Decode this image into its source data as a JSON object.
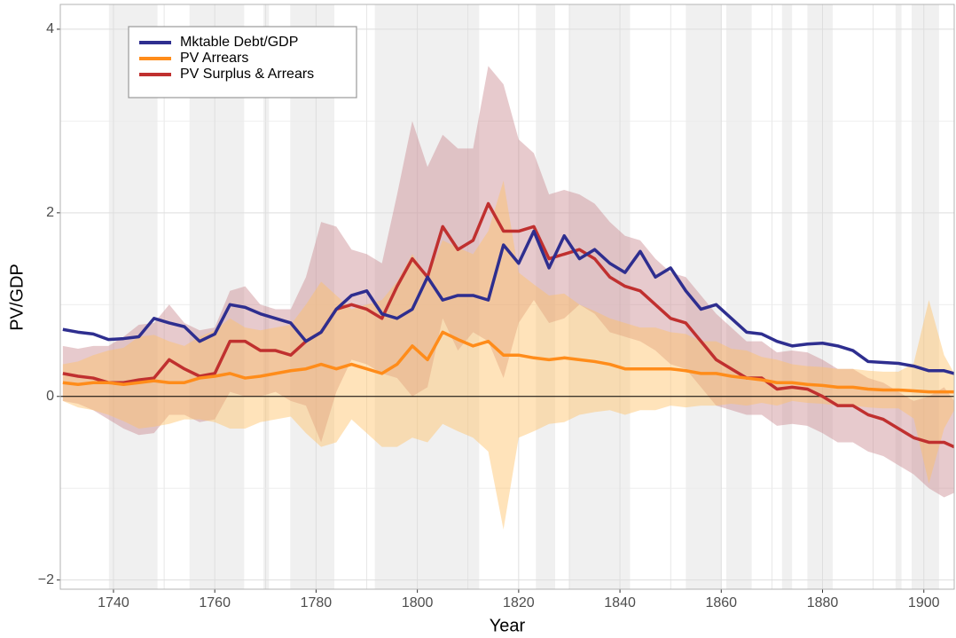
{
  "chart_data": {
    "type": "line",
    "xlabel": "Year",
    "ylabel": "PV/GDP",
    "xlim": [
      1729.5,
      1906
    ],
    "ylim": [
      -2.1,
      4.27
    ],
    "xticks": [
      1740,
      1760,
      1780,
      1800,
      1820,
      1840,
      1860,
      1880,
      1900
    ],
    "yticks": [
      {
        "value": -2,
        "label": "−2"
      },
      0,
      2,
      4
    ],
    "grid": true,
    "legend": "top-left",
    "reference_line": 0,
    "shaded_periods": [
      [
        1739.1,
        1748.7
      ],
      [
        1755,
        1765.8
      ],
      [
        1769.6,
        1770.7
      ],
      [
        1774.9,
        1783.6
      ],
      [
        1791.6,
        1812.2
      ],
      [
        1823.4,
        1827.2
      ],
      [
        1830,
        1842
      ],
      [
        1853,
        1860
      ],
      [
        1861,
        1866
      ],
      [
        1872,
        1874
      ],
      [
        1877,
        1882
      ],
      [
        1894.4,
        1895.6
      ],
      [
        1897.6,
        1903
      ]
    ],
    "x": [
      1730,
      1733,
      1736,
      1739,
      1742,
      1745,
      1748,
      1751,
      1754,
      1757,
      1760,
      1763,
      1766,
      1769,
      1772,
      1775,
      1778,
      1781,
      1784,
      1787,
      1790,
      1793,
      1796,
      1799,
      1802,
      1805,
      1808,
      1811,
      1814,
      1817,
      1820,
      1823,
      1826,
      1829,
      1832,
      1835,
      1838,
      1841,
      1844,
      1847,
      1850,
      1853,
      1856,
      1859,
      1862,
      1865,
      1868,
      1871,
      1874,
      1877,
      1880,
      1883,
      1886,
      1889,
      1892,
      1895,
      1898,
      1901,
      1904,
      1906
    ],
    "series": [
      {
        "name": "Mktable Debt/GDP",
        "color": "#2e2e8f",
        "values": [
          0.73,
          0.7,
          0.68,
          0.62,
          0.63,
          0.65,
          0.85,
          0.8,
          0.76,
          0.6,
          0.68,
          1.0,
          0.97,
          0.9,
          0.85,
          0.8,
          0.6,
          0.7,
          0.95,
          1.1,
          1.15,
          0.9,
          0.85,
          0.95,
          1.3,
          1.05,
          1.1,
          1.1,
          1.05,
          1.65,
          1.45,
          1.8,
          1.4,
          1.75,
          1.5,
          1.6,
          1.45,
          1.35,
          1.58,
          1.3,
          1.4,
          1.15,
          0.95,
          1.0,
          0.85,
          0.7,
          0.68,
          0.6,
          0.55,
          0.57,
          0.58,
          0.55,
          0.5,
          0.38,
          0.37,
          0.36,
          0.33,
          0.28,
          0.28,
          0.25
        ]
      },
      {
        "name": "PV Arrears",
        "color": "#ff8c1a",
        "band_color": "#ffc266",
        "values": [
          0.15,
          0.13,
          0.15,
          0.15,
          0.13,
          0.15,
          0.17,
          0.15,
          0.15,
          0.2,
          0.22,
          0.25,
          0.2,
          0.22,
          0.25,
          0.28,
          0.3,
          0.35,
          0.3,
          0.35,
          0.3,
          0.25,
          0.35,
          0.55,
          0.4,
          0.7,
          0.62,
          0.55,
          0.6,
          0.45,
          0.45,
          0.42,
          0.4,
          0.42,
          0.4,
          0.38,
          0.35,
          0.3,
          0.3,
          0.3,
          0.3,
          0.28,
          0.25,
          0.25,
          0.22,
          0.2,
          0.18,
          0.15,
          0.15,
          0.13,
          0.12,
          0.1,
          0.1,
          0.08,
          0.07,
          0.07,
          0.06,
          0.05,
          0.05,
          0.05
        ],
        "band_upper": [
          0.35,
          0.38,
          0.45,
          0.5,
          0.53,
          0.65,
          0.67,
          0.6,
          0.55,
          0.65,
          0.72,
          0.85,
          0.75,
          0.72,
          0.75,
          0.78,
          1.0,
          1.25,
          1.1,
          0.95,
          1.0,
          1.05,
          1.25,
          1.55,
          1.3,
          1.7,
          1.62,
          1.55,
          1.8,
          2.35,
          1.35,
          1.22,
          1.1,
          1.12,
          1.0,
          0.93,
          0.85,
          0.8,
          0.75,
          0.75,
          0.7,
          0.68,
          0.6,
          0.6,
          0.52,
          0.5,
          0.43,
          0.4,
          0.35,
          0.33,
          0.32,
          0.3,
          0.3,
          0.28,
          0.27,
          0.27,
          0.36,
          1.05,
          0.45,
          0.25
        ],
        "band_lower": [
          -0.05,
          -0.12,
          -0.15,
          -0.2,
          -0.27,
          -0.35,
          -0.33,
          -0.3,
          -0.25,
          -0.25,
          -0.28,
          -0.35,
          -0.35,
          -0.28,
          -0.25,
          -0.22,
          -0.4,
          -0.55,
          -0.5,
          -0.25,
          -0.4,
          -0.55,
          -0.55,
          -0.45,
          -0.5,
          -0.3,
          -0.38,
          -0.45,
          -0.6,
          -1.45,
          -0.45,
          -0.38,
          -0.3,
          -0.28,
          -0.2,
          -0.17,
          -0.15,
          -0.2,
          -0.15,
          -0.15,
          -0.1,
          -0.12,
          -0.1,
          -0.1,
          -0.08,
          -0.1,
          -0.07,
          -0.1,
          -0.05,
          -0.07,
          -0.08,
          -0.1,
          -0.1,
          -0.12,
          -0.13,
          -0.13,
          -0.24,
          -0.95,
          -0.35,
          -0.15
        ]
      },
      {
        "name": "PV Surplus & Arrears",
        "color": "#c0302f",
        "band_color": "#c98a91",
        "values": [
          0.25,
          0.22,
          0.2,
          0.15,
          0.15,
          0.18,
          0.2,
          0.4,
          0.3,
          0.22,
          0.25,
          0.6,
          0.6,
          0.5,
          0.5,
          0.45,
          0.6,
          0.7,
          0.95,
          1.0,
          0.95,
          0.85,
          1.2,
          1.5,
          1.3,
          1.85,
          1.6,
          1.7,
          2.1,
          1.8,
          1.8,
          1.85,
          1.5,
          1.55,
          1.6,
          1.5,
          1.3,
          1.2,
          1.15,
          1.0,
          0.85,
          0.8,
          0.6,
          0.4,
          0.3,
          0.2,
          0.2,
          0.08,
          0.1,
          0.08,
          0.0,
          -0.1,
          -0.1,
          -0.2,
          -0.25,
          -0.35,
          -0.45,
          -0.5,
          -0.5,
          -0.55
        ],
        "band_upper": [
          0.55,
          0.52,
          0.55,
          0.55,
          0.65,
          0.78,
          0.8,
          1.0,
          0.8,
          0.72,
          0.75,
          1.15,
          1.2,
          1.0,
          0.95,
          0.95,
          1.3,
          1.9,
          1.85,
          1.6,
          1.55,
          1.45,
          2.2,
          3.0,
          2.5,
          2.85,
          2.7,
          2.7,
          3.6,
          3.4,
          2.8,
          2.65,
          2.2,
          2.25,
          2.2,
          2.1,
          1.9,
          1.75,
          1.7,
          1.5,
          1.35,
          1.3,
          1.1,
          0.9,
          0.75,
          0.6,
          0.6,
          0.48,
          0.5,
          0.48,
          0.4,
          0.3,
          0.3,
          0.2,
          0.15,
          0.05,
          -0.05,
          0,
          0.1,
          -0.05
        ],
        "band_lower": [
          -0.05,
          -0.08,
          -0.15,
          -0.25,
          -0.35,
          -0.42,
          -0.4,
          -0.2,
          -0.2,
          -0.28,
          -0.25,
          0.05,
          0,
          0,
          0.05,
          -0.05,
          -0.1,
          -0.5,
          0.05,
          0.4,
          0.35,
          0.25,
          0.2,
          0,
          0.1,
          0.85,
          0.5,
          0.7,
          0.6,
          0.2,
          0.8,
          1.05,
          0.8,
          0.85,
          1.0,
          0.9,
          0.7,
          0.65,
          0.6,
          0.5,
          0.35,
          0.3,
          0.1,
          -0.1,
          -0.15,
          -0.2,
          -0.2,
          -0.32,
          -0.3,
          -0.32,
          -0.4,
          -0.5,
          -0.5,
          -0.6,
          -0.65,
          -0.75,
          -0.85,
          -1.0,
          -1.1,
          -1.05
        ]
      }
    ]
  }
}
